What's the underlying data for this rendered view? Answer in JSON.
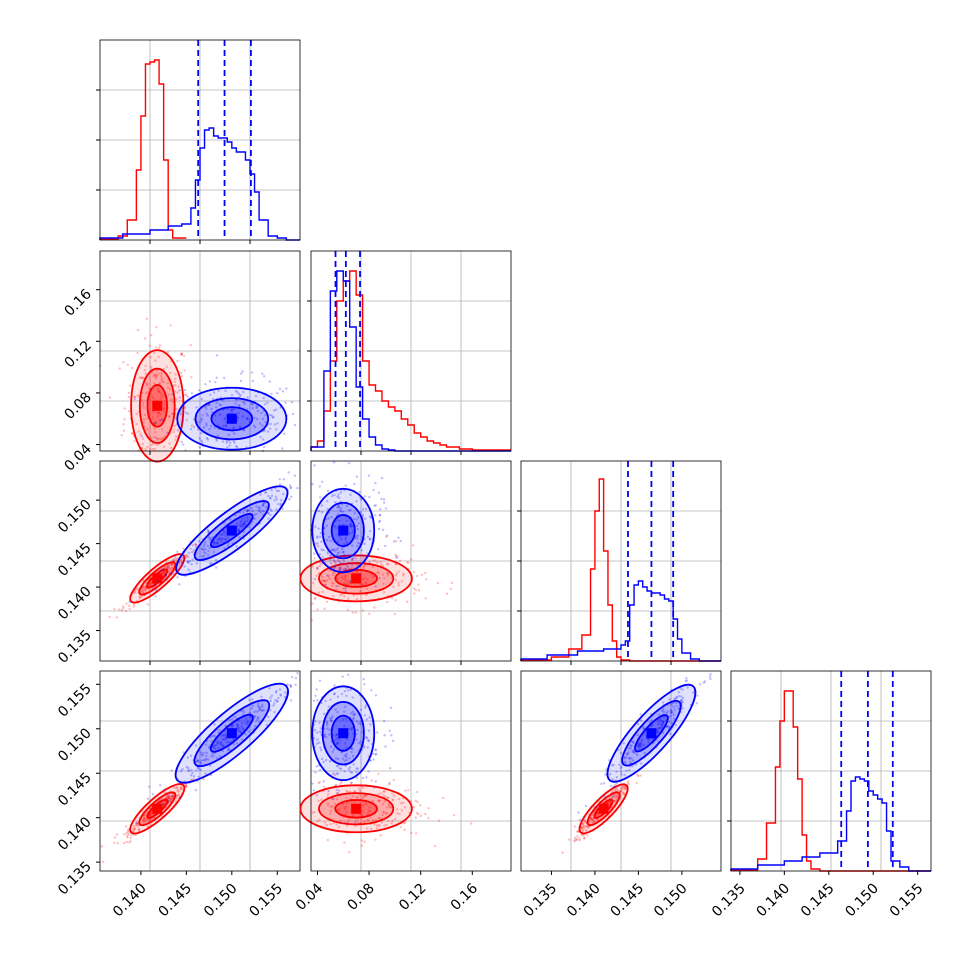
{
  "chart_data": {
    "type": "corner",
    "grid": true,
    "colors": {
      "red": "#ff0000",
      "blue": "#0000ff",
      "grid": "#b0b0b0",
      "frame": "#000000"
    },
    "panels": [
      {
        "row": 0,
        "col": 0,
        "kind": "hist",
        "xlim": [
          0.1355,
          0.1575
        ],
        "xticks": [],
        "yticks": [],
        "series": [
          {
            "color": "red",
            "edges": [
              0.1355,
              0.1375,
              0.1385,
              0.1395,
              0.14,
              0.1405,
              0.141,
              0.1415,
              0.142,
              0.1425,
              0.143,
              0.1435,
              0.145
            ],
            "heights": [
              0.005,
              0.02,
              0.1,
              0.35,
              0.62,
              0.88,
              0.89,
              0.9,
              0.78,
              0.4,
              0.05,
              0.01
            ]
          },
          {
            "color": "blue",
            "edges": [
              0.1355,
              0.138,
              0.141,
              0.143,
              0.1445,
              0.1455,
              0.146,
              0.1465,
              0.147,
              0.1475,
              0.148,
              0.1485,
              0.149,
              0.1495,
              0.15,
              0.1505,
              0.151,
              0.1515,
              0.152,
              0.1525,
              0.153,
              0.154,
              0.155,
              0.156,
              0.1575
            ],
            "heights": [
              0.01,
              0.03,
              0.05,
              0.07,
              0.08,
              0.16,
              0.3,
              0.46,
              0.55,
              0.56,
              0.52,
              0.51,
              0.51,
              0.49,
              0.46,
              0.44,
              0.44,
              0.4,
              0.33,
              0.24,
              0.1,
              0.02,
              0.01,
              0.0
            ]
          }
        ],
        "quantile_lines": [
          0.1463,
          0.1492,
          0.1521
        ]
      },
      {
        "row": 1,
        "col": 0,
        "kind": "scatter",
        "xlim": [
          0.1355,
          0.1575
        ],
        "ylim": [
          0.035,
          0.19
        ],
        "xticks": [],
        "yticks": [
          "0.04",
          "0.08",
          "0.12",
          "0.16"
        ]
      },
      {
        "row": 1,
        "col": 1,
        "kind": "hist",
        "xlim": [
          0.035,
          0.19
        ],
        "xticks": [],
        "yticks": [],
        "series": [
          {
            "color": "red",
            "edges": [
              0.035,
              0.04,
              0.045,
              0.05,
              0.055,
              0.06,
              0.065,
              0.07,
              0.075,
              0.08,
              0.085,
              0.09,
              0.095,
              0.1,
              0.105,
              0.11,
              0.115,
              0.12,
              0.125,
              0.13,
              0.135,
              0.14,
              0.15,
              0.16,
              0.19
            ],
            "heights": [
              0.02,
              0.05,
              0.2,
              0.45,
              0.75,
              0.85,
              0.9,
              0.78,
              0.45,
              0.33,
              0.3,
              0.25,
              0.22,
              0.2,
              0.16,
              0.13,
              0.09,
              0.07,
              0.05,
              0.04,
              0.03,
              0.02,
              0.01,
              0.005
            ]
          },
          {
            "color": "blue",
            "edges": [
              0.035,
              0.045,
              0.05,
              0.055,
              0.06,
              0.065,
              0.07,
              0.075,
              0.08,
              0.085,
              0.09,
              0.095,
              0.1,
              0.19
            ],
            "heights": [
              0.02,
              0.4,
              0.8,
              0.9,
              0.85,
              0.62,
              0.32,
              0.16,
              0.07,
              0.03,
              0.01,
              0.005,
              0.0
            ]
          }
        ],
        "quantile_lines": [
          0.054,
          0.062,
          0.073
        ]
      },
      {
        "row": 2,
        "col": 0,
        "kind": "scatter",
        "xlim": [
          0.1355,
          0.1575
        ],
        "ylim": [
          0.1315,
          0.1545
        ],
        "xticks": [],
        "yticks": [
          "0.135",
          "0.140",
          "0.145",
          "0.150"
        ]
      },
      {
        "row": 2,
        "col": 1,
        "kind": "scatter",
        "xlim": [
          0.035,
          0.19
        ],
        "ylim": [
          0.1315,
          0.1545
        ],
        "xticks": [],
        "yticks": []
      },
      {
        "row": 2,
        "col": 2,
        "kind": "hist",
        "xlim": [
          0.1315,
          0.1545
        ],
        "xticks": [],
        "yticks": [],
        "series": [
          {
            "color": "red",
            "edges": [
              0.1315,
              0.135,
              0.137,
              0.1385,
              0.1395,
              0.14,
              0.1405,
              0.141,
              0.1415,
              0.142,
              0.1425,
              0.143,
              0.144,
              0.1545
            ],
            "heights": [
              0.005,
              0.02,
              0.06,
              0.13,
              0.46,
              0.75,
              0.91,
              0.55,
              0.28,
              0.1,
              0.02,
              0.005,
              0.0
            ]
          },
          {
            "color": "blue",
            "edges": [
              0.1315,
              0.1345,
              0.138,
              0.141,
              0.143,
              0.1435,
              0.144,
              0.1445,
              0.145,
              0.1455,
              0.146,
              0.1465,
              0.147,
              0.1475,
              0.148,
              0.1485,
              0.149,
              0.1495,
              0.15,
              0.151,
              0.152,
              0.1545
            ],
            "heights": [
              0.01,
              0.03,
              0.05,
              0.06,
              0.08,
              0.1,
              0.28,
              0.38,
              0.4,
              0.37,
              0.35,
              0.34,
              0.34,
              0.33,
              0.31,
              0.3,
              0.21,
              0.11,
              0.04,
              0.01,
              0.0
            ]
          }
        ],
        "quantile_lines": [
          0.1438,
          0.1465,
          0.149
        ]
      },
      {
        "row": 3,
        "col": 0,
        "kind": "scatter",
        "xlim": [
          0.1355,
          0.1575
        ],
        "ylim": [
          0.134,
          0.1565
        ],
        "xticks": [
          "0.140",
          "0.145",
          "0.150",
          "0.155"
        ],
        "yticks": [
          "0.135",
          "0.140",
          "0.145",
          "0.150",
          "0.155"
        ]
      },
      {
        "row": 3,
        "col": 1,
        "kind": "scatter",
        "xlim": [
          0.035,
          0.19
        ],
        "ylim": [
          0.134,
          0.1565
        ],
        "xticks": [
          "0.04",
          "0.08",
          "0.12",
          "0.16"
        ],
        "yticks": []
      },
      {
        "row": 3,
        "col": 2,
        "kind": "scatter",
        "xlim": [
          0.1315,
          0.1545
        ],
        "ylim": [
          0.134,
          0.1565
        ],
        "xticks": [
          "0.135",
          "0.140",
          "0.145",
          "0.150"
        ],
        "yticks": []
      },
      {
        "row": 3,
        "col": 3,
        "kind": "hist",
        "xlim": [
          0.134,
          0.1565
        ],
        "xticks": [
          "0.135",
          "0.140",
          "0.145",
          "0.150",
          "0.155"
        ],
        "yticks": [],
        "series": [
          {
            "color": "red",
            "edges": [
              0.134,
              0.137,
              0.138,
              0.139,
              0.1395,
              0.14,
              0.1405,
              0.141,
              0.1415,
              0.142,
              0.1425,
              0.143,
              0.144,
              0.1565
            ],
            "heights": [
              0.005,
              0.06,
              0.24,
              0.52,
              0.75,
              0.9,
              0.9,
              0.72,
              0.46,
              0.18,
              0.05,
              0.01,
              0.0
            ]
          },
          {
            "color": "blue",
            "edges": [
              0.134,
              0.137,
              0.14,
              0.142,
              0.144,
              0.146,
              0.147,
              0.1475,
              0.148,
              0.1485,
              0.149,
              0.1495,
              0.15,
              0.1505,
              0.151,
              0.1515,
              0.152,
              0.153,
              0.154,
              0.1565
            ],
            "heights": [
              0.01,
              0.03,
              0.05,
              0.07,
              0.09,
              0.15,
              0.3,
              0.45,
              0.47,
              0.46,
              0.45,
              0.4,
              0.38,
              0.36,
              0.34,
              0.2,
              0.05,
              0.02,
              0.0
            ]
          }
        ],
        "quantile_lines": [
          0.1464,
          0.1494,
          0.1522
        ]
      }
    ],
    "clusters": [
      {
        "color": "red",
        "params": {
          "p0": 0.1418,
          "p1": 0.07,
          "p2": 0.141,
          "p3": 0.141
        },
        "spread": {
          "p0": 0.0012,
          "p1": 0.018,
          "p2": 0.0011,
          "p3": 0.0011
        }
      },
      {
        "color": "blue",
        "params": {
          "p0": 0.15,
          "p1": 0.06,
          "p2": 0.1465,
          "p3": 0.1495
        },
        "spread": {
          "p0": 0.0025,
          "p1": 0.01,
          "p2": 0.002,
          "p3": 0.0022
        }
      }
    ]
  }
}
